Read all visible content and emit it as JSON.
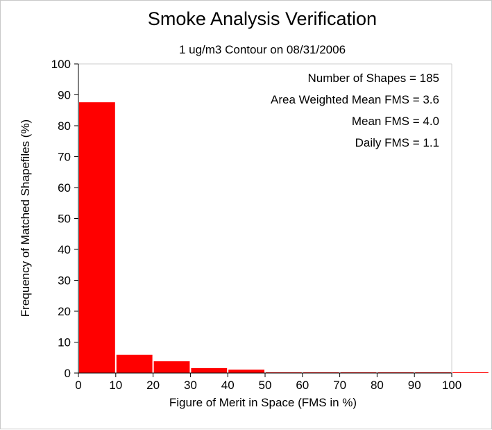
{
  "chart_data": {
    "type": "bar",
    "title": "Smoke Analysis Verification",
    "subtitle": "1 ug/m3 Contour on 08/31/2006",
    "xlabel": "Figure of Merit in Space (FMS in %)",
    "ylabel": "Frequency of Matched Shapefiles (%)",
    "xlim": [
      0,
      110
    ],
    "ylim": [
      0,
      100
    ],
    "x_ticks": [
      "0",
      "10",
      "20",
      "30",
      "40",
      "50",
      "60",
      "70",
      "80",
      "90",
      "100"
    ],
    "y_ticks": [
      "0",
      "10",
      "20",
      "30",
      "40",
      "50",
      "60",
      "70",
      "80",
      "90",
      "100"
    ],
    "bin_width": 10,
    "bins": [
      0,
      10,
      20,
      30,
      40,
      50,
      60,
      70,
      80,
      90,
      100
    ],
    "values": [
      87.6,
      5.9,
      3.8,
      1.6,
      1.1,
      0,
      0,
      0,
      0,
      0,
      0
    ],
    "bar_color": "#ff0000",
    "grid": false,
    "annotations": [
      "Number of Shapes = 185",
      "Area Weighted Mean FMS = 3.6",
      "Mean FMS = 4.0",
      "Daily FMS = 1.1"
    ],
    "annotation_placement": "top-right"
  }
}
